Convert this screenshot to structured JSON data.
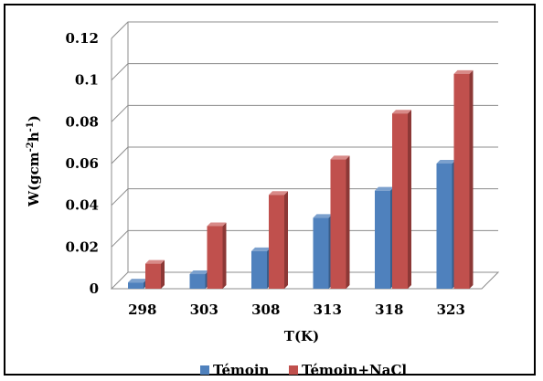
{
  "chart_data": {
    "type": "bar",
    "categories": [
      "298",
      "303",
      "308",
      "313",
      "318",
      "323"
    ],
    "series": [
      {
        "name": "Témoin",
        "values": [
          0.003,
          0.007,
          0.018,
          0.034,
          0.047,
          0.06
        ],
        "color": "#4F81BD",
        "side": "#385D8A",
        "top": "#7BA0CD"
      },
      {
        "name": "Témoin+NaCl",
        "values": [
          0.012,
          0.03,
          0.045,
          0.062,
          0.084,
          0.103
        ],
        "color": "#C0504D",
        "side": "#8C3836",
        "top": "#D88A88"
      }
    ],
    "yticks": [
      "0",
      "0.02",
      "0.04",
      "0.06",
      "0.08",
      "0.1",
      "0.12"
    ],
    "ylim": [
      0,
      0.12
    ],
    "xlabel": "T(K)",
    "ylabel_main": "W(gcm",
    "ylabel_exp1": "-2",
    "ylabel_mid": "h",
    "ylabel_exp2": "-1",
    "ylabel_end": ")",
    "grid": true,
    "legend_position": "bottom"
  }
}
